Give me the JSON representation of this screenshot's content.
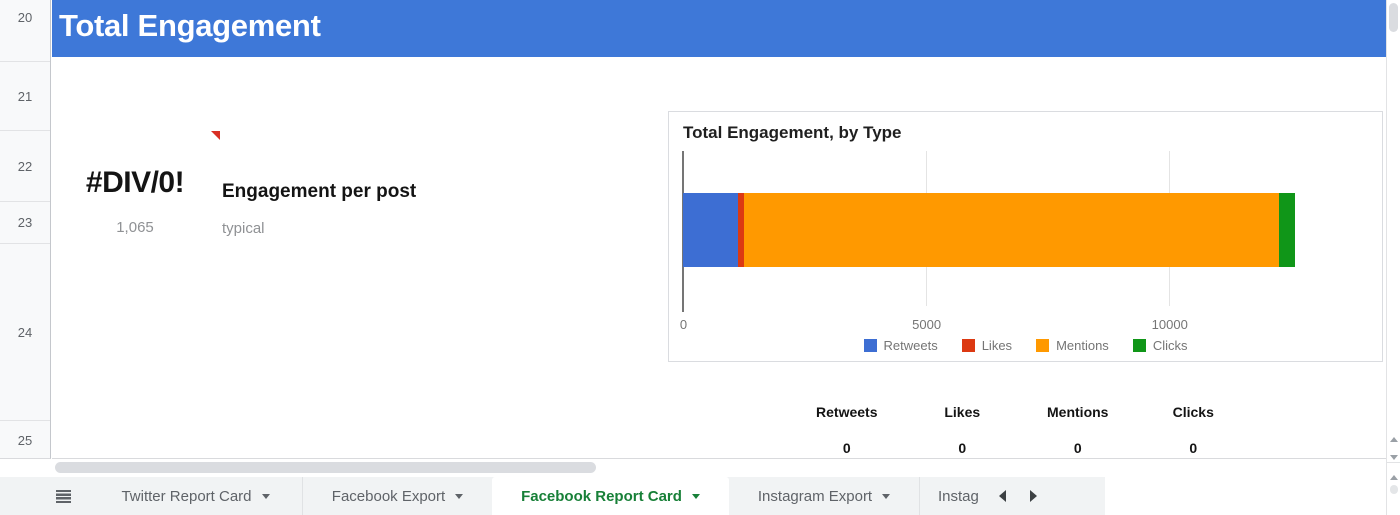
{
  "rows": {
    "numbers": [
      "20",
      "21",
      "22",
      "23",
      "24",
      "25"
    ]
  },
  "header": {
    "title": "Total Engagement",
    "bg_color": "#3e78d8"
  },
  "kpi": {
    "error_value": "#DIV/0!",
    "count": "1,065",
    "label": "Engagement per post",
    "sublabel": "typical"
  },
  "chart_data": {
    "type": "bar",
    "orientation": "horizontal",
    "stacked": true,
    "title": "Total Engagement, by Type",
    "series": [
      {
        "name": "Retweets",
        "value": 1130,
        "color": "#3d6ed3"
      },
      {
        "name": "Likes",
        "value": 125,
        "color": "#dc3912"
      },
      {
        "name": "Mentions",
        "value": 11000,
        "color": "#ff9900"
      },
      {
        "name": "Clicks",
        "value": 330,
        "color": "#109618"
      }
    ],
    "total_estimate": 12585,
    "x_axis": {
      "max": 14170,
      "ticks": [
        {
          "label": "0",
          "value": 0
        },
        {
          "label": "5000",
          "value": 5000
        },
        {
          "label": "10000",
          "value": 10000
        }
      ]
    },
    "legend_position": "bottom",
    "grid": true
  },
  "summary_table": {
    "columns": [
      {
        "header": "Retweets",
        "value": "0"
      },
      {
        "header": "Likes",
        "value": "0"
      },
      {
        "header": "Mentions",
        "value": "0"
      },
      {
        "header": "Clicks",
        "value": "0"
      }
    ]
  },
  "tab_bar": {
    "tabs": [
      {
        "label": "Twitter Report Card",
        "active": false
      },
      {
        "label": "Facebook Export",
        "active": false
      },
      {
        "label": "Facebook Report Card",
        "active": true
      },
      {
        "label": "Instagram Export",
        "active": false
      },
      {
        "label": "Instag",
        "active": false
      }
    ],
    "active_color": "#188038"
  }
}
